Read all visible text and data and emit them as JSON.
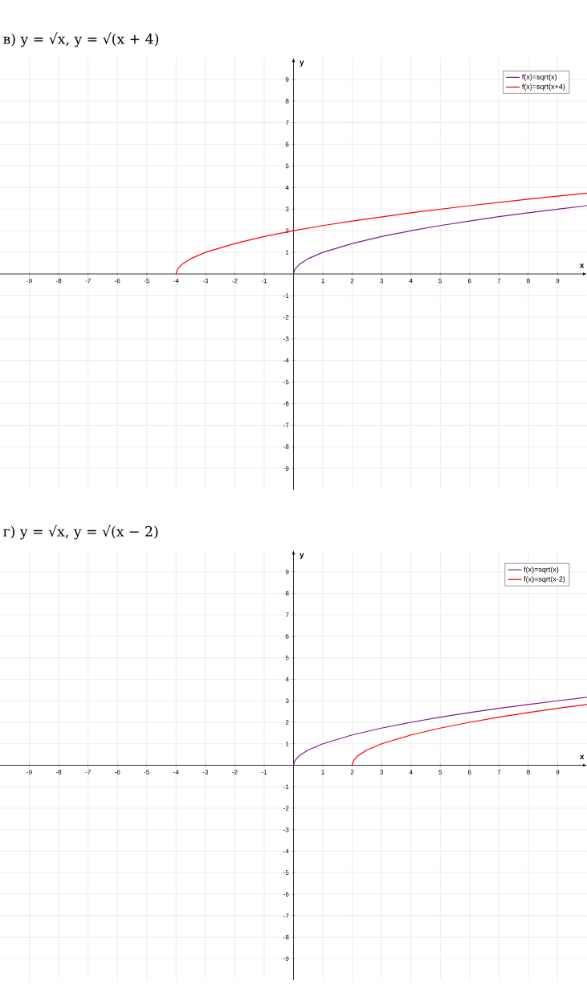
{
  "chart_data": [
    {
      "type": "line",
      "title": "в) y = √x,      y = √(x + 4)",
      "xlabel": "x",
      "ylabel": "y",
      "xlim": [
        -10,
        10
      ],
      "ylim": [
        -10,
        10
      ],
      "xticks": [
        -9,
        -8,
        -7,
        -6,
        -5,
        -4,
        -3,
        -2,
        -1,
        1,
        2,
        3,
        4,
        5,
        6,
        7,
        8,
        9
      ],
      "yticks": [
        -9,
        -8,
        -7,
        -6,
        -5,
        -4,
        -3,
        -2,
        -1,
        1,
        2,
        3,
        4,
        5,
        6,
        7,
        8,
        9
      ],
      "grid": true,
      "legend": "top right",
      "series": [
        {
          "name": "f(x)=sqrt(x)",
          "color": "#7a1e8a",
          "x": [
            0,
            0.05,
            0.2,
            0.5,
            1,
            2,
            3,
            4,
            5,
            6,
            7,
            8,
            9,
            10
          ],
          "values": [
            0,
            0.22,
            0.45,
            0.71,
            1,
            1.41,
            1.73,
            2,
            2.24,
            2.45,
            2.65,
            2.83,
            3,
            3.16
          ]
        },
        {
          "name": "f(x)=sqrt(x+4)",
          "color": "#ff0000",
          "x": [
            -4,
            -3.95,
            -3.8,
            -3.5,
            -3,
            -2,
            -1,
            0,
            1,
            2,
            4,
            6,
            8,
            10
          ],
          "values": [
            0,
            0.22,
            0.45,
            0.71,
            1,
            1.41,
            1.73,
            2,
            2.24,
            2.45,
            2.83,
            3.16,
            3.46,
            3.74
          ]
        }
      ]
    },
    {
      "type": "line",
      "title": "г) y = √x,      y = √(x − 2)",
      "xlabel": "x",
      "ylabel": "y",
      "xlim": [
        -10,
        10
      ],
      "ylim": [
        -10,
        10
      ],
      "xticks": [
        -9,
        -8,
        -7,
        -6,
        -5,
        -4,
        -3,
        -2,
        -1,
        1,
        2,
        3,
        4,
        5,
        6,
        7,
        8,
        9
      ],
      "yticks": [
        -9,
        -8,
        -7,
        -6,
        -5,
        -4,
        -3,
        -2,
        -1,
        1,
        2,
        3,
        4,
        5,
        6,
        7,
        8,
        9
      ],
      "grid": true,
      "legend": "top right",
      "series": [
        {
          "name": "f(x)=sqrt(x)",
          "color": "#7a1e8a",
          "x": [
            0,
            0.05,
            0.2,
            0.5,
            1,
            2,
            3,
            4,
            5,
            6,
            7,
            8,
            9,
            10
          ],
          "values": [
            0,
            0.22,
            0.45,
            0.71,
            1,
            1.41,
            1.73,
            2,
            2.24,
            2.45,
            2.65,
            2.83,
            3,
            3.16
          ]
        },
        {
          "name": "f(x)=sqrt(x-2)",
          "color": "#ff0000",
          "x": [
            2,
            2.05,
            2.2,
            2.5,
            3,
            4,
            5,
            6,
            7,
            8,
            9,
            10
          ],
          "values": [
            0,
            0.22,
            0.45,
            0.71,
            1,
            1.41,
            1.73,
            2,
            2.24,
            2.45,
            2.65,
            2.83
          ]
        }
      ]
    }
  ]
}
